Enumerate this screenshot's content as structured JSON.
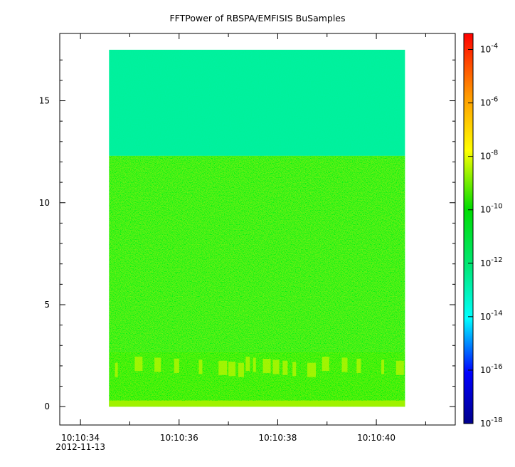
{
  "chart_data": {
    "type": "heatmap",
    "title": "FFTPower of RBSPA/EMFISIS  BuSamples",
    "xlabel": "",
    "ylabel": "",
    "x_ticks": [
      {
        "value": "10:10:34",
        "sub": "2012-11-13"
      },
      {
        "value": "10:10:36",
        "sub": ""
      },
      {
        "value": "10:10:38",
        "sub": ""
      },
      {
        "value": "10:10:40",
        "sub": ""
      }
    ],
    "x_range_seconds": [
      33.58,
      41.6
    ],
    "data_x_extent_seconds": [
      34.58,
      40.58
    ],
    "y_ticks": [
      "0",
      "5",
      "10",
      "15"
    ],
    "ylim": [
      -0.9,
      18.3
    ],
    "colorbar": {
      "scale": "log",
      "range_exponent": [
        -18,
        -3.4
      ],
      "tick_exponents": [
        -4,
        -6,
        -8,
        -10,
        -12,
        -14,
        -16,
        -18
      ],
      "tick_base": "10"
    },
    "bands": [
      {
        "y_range": [
          12.3,
          17.5
        ],
        "level_exponent": -12.3,
        "description": "teal-green"
      },
      {
        "y_range": [
          2.7,
          12.3
        ],
        "level_exponent": -10.8,
        "description": "green"
      },
      {
        "y_range": [
          0.0,
          2.7
        ],
        "level_exponent": -10.4,
        "description": "green with yellow bursts near y≈2"
      },
      {
        "y_range": [
          0.0,
          0.3
        ],
        "level_exponent": -8.6,
        "description": "yellow"
      }
    ]
  }
}
